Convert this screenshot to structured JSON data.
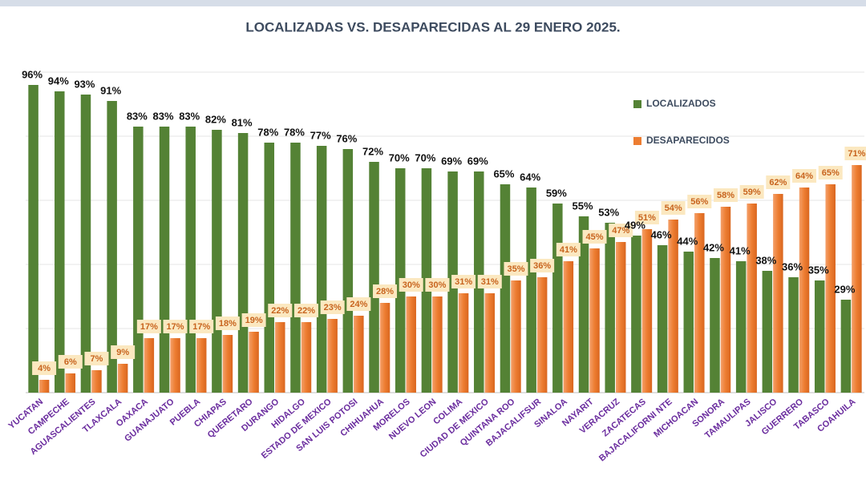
{
  "chart_data": {
    "type": "bar",
    "title": "LOCALIZADAS VS. DESAPARECIDAS AL 29 ENERO 2025.",
    "categories": [
      "YUCATAN",
      "CAMPECHE",
      "AGUASCALIENTES",
      "TLAXCALA",
      "OAXACA",
      "GUANAJUATO",
      "PUEBLA",
      "CHIAPAS",
      "QUERETARO",
      "DURANGO",
      "HIDALGO",
      "ESTADO DE MEXICO",
      "SAN LUIS POTOSI",
      "CHIHUAHUA",
      "MORELOS",
      "NUEVO LEON",
      "COLIMA",
      "CIUDAD DE MEXICO",
      "QUINTANA ROO",
      "BAJACALIFSUR",
      "SINALOA",
      "NAYARIT",
      "VERACRUZ",
      "ZACATECAS",
      "BAJACALIFORNI NTE",
      "MICHOACAN",
      "SONORA",
      "TAMAULIPAS",
      "JALISCO",
      "GUERRERO",
      "TABASCO",
      "COAHUILA"
    ],
    "series": [
      {
        "name": "LOCALIZADOS",
        "color": "#548235",
        "values": [
          96,
          94,
          93,
          91,
          83,
          83,
          83,
          82,
          81,
          78,
          78,
          77,
          76,
          72,
          70,
          70,
          69,
          69,
          65,
          64,
          59,
          55,
          53,
          49,
          46,
          44,
          42,
          41,
          38,
          36,
          35,
          29
        ],
        "value_labels": [
          "96%",
          "94%",
          "93%",
          "91%",
          "83%",
          "83%",
          "83%",
          "82%",
          "81%",
          "78%",
          "78%",
          "77%",
          "76%",
          "72%",
          "70%",
          "70%",
          "69%",
          "69%",
          "65%",
          "64%",
          "59%",
          "55%",
          "53%",
          "49%",
          "46%",
          "44%",
          "42%",
          "41%",
          "38%",
          "36%",
          "35%",
          "29%"
        ]
      },
      {
        "name": "DESAPARECIDOS",
        "color": "#ed7d31",
        "values": [
          4,
          6,
          7,
          9,
          17,
          17,
          17,
          18,
          19,
          22,
          22,
          23,
          24,
          28,
          30,
          30,
          31,
          31,
          35,
          36,
          41,
          45,
          47,
          51,
          54,
          56,
          58,
          59,
          62,
          64,
          65,
          71
        ],
        "value_labels": [
          "4%",
          "6%",
          "7%",
          "9%",
          "17%",
          "17%",
          "17%",
          "18%",
          "19%",
          "22%",
          "22%",
          "23%",
          "24%",
          "28%",
          "30%",
          "30%",
          "31%",
          "31%",
          "35%",
          "36%",
          "41%",
          "45%",
          "47%",
          "51%",
          "54%",
          "56%",
          "58%",
          "59%",
          "62%",
          "64%",
          "65%",
          "71%"
        ]
      }
    ],
    "ylim": [
      0,
      100
    ],
    "yticks": [
      0,
      20,
      40,
      60,
      80,
      100
    ],
    "grid": true
  }
}
